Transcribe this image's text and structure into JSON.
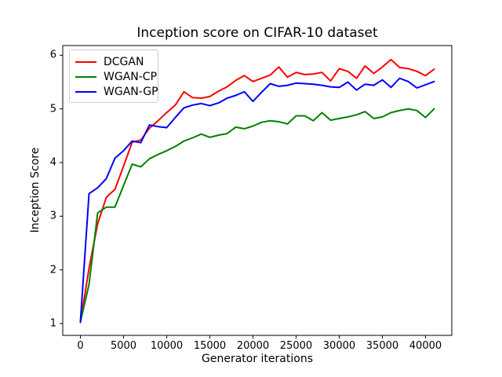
{
  "chart_data": {
    "type": "line",
    "title": "Inception score on CIFAR-10 dataset",
    "xlabel": "Generator iterations",
    "ylabel": "Inception Score",
    "grid": false,
    "legend_position": "upper-left",
    "xlim": [
      -2050,
      43050
    ],
    "ylim": [
      0.78,
      6.18
    ],
    "xticks": {
      "values": [
        0,
        5000,
        10000,
        15000,
        20000,
        25000,
        30000,
        35000,
        40000
      ],
      "labels": [
        "0",
        "5000",
        "10000",
        "15000",
        "20000",
        "25000",
        "30000",
        "35000",
        "40000"
      ]
    },
    "yticks": {
      "values": [
        1,
        2,
        3,
        4,
        5,
        6
      ],
      "labels": [
        "1",
        "2",
        "3",
        "4",
        "5",
        "6"
      ]
    },
    "x": [
      0,
      1000,
      2000,
      3000,
      4000,
      5000,
      6000,
      7000,
      8000,
      9000,
      10000,
      11000,
      12000,
      13000,
      14000,
      15000,
      16000,
      17000,
      18000,
      19000,
      20000,
      21000,
      22000,
      23000,
      24000,
      25000,
      26000,
      27000,
      28000,
      29000,
      30000,
      31000,
      32000,
      33000,
      34000,
      35000,
      36000,
      37000,
      38000,
      39000,
      40000,
      41000
    ],
    "series": [
      {
        "name": "DCGAN",
        "color": "#ff0000",
        "values": [
          1.02,
          2.03,
          2.86,
          3.35,
          3.5,
          3.93,
          4.38,
          4.42,
          4.64,
          4.78,
          4.93,
          5.07,
          5.32,
          5.21,
          5.2,
          5.23,
          5.33,
          5.41,
          5.53,
          5.62,
          5.51,
          5.57,
          5.63,
          5.78,
          5.59,
          5.68,
          5.64,
          5.65,
          5.68,
          5.52,
          5.75,
          5.7,
          5.57,
          5.8,
          5.66,
          5.78,
          5.92,
          5.77,
          5.75,
          5.7,
          5.62,
          5.74
        ]
      },
      {
        "name": "WGAN-CP",
        "color": "#008000",
        "values": [
          1.03,
          1.73,
          3.06,
          3.17,
          3.17,
          3.57,
          3.97,
          3.92,
          4.07,
          4.15,
          4.22,
          4.3,
          4.4,
          4.46,
          4.53,
          4.47,
          4.51,
          4.54,
          4.66,
          4.63,
          4.68,
          4.75,
          4.78,
          4.76,
          4.72,
          4.87,
          4.87,
          4.78,
          4.93,
          4.79,
          4.82,
          4.85,
          4.89,
          4.95,
          4.82,
          4.85,
          4.93,
          4.97,
          5.0,
          4.97,
          4.84,
          5.0
        ]
      },
      {
        "name": "WGAN-GP",
        "color": "#0000ff",
        "values": [
          1.03,
          3.42,
          3.53,
          3.7,
          4.08,
          4.22,
          4.4,
          4.37,
          4.7,
          4.67,
          4.65,
          4.84,
          5.02,
          5.07,
          5.1,
          5.06,
          5.11,
          5.2,
          5.25,
          5.32,
          5.14,
          5.31,
          5.47,
          5.42,
          5.44,
          5.48,
          5.47,
          5.46,
          5.44,
          5.41,
          5.4,
          5.5,
          5.35,
          5.46,
          5.44,
          5.54,
          5.4,
          5.57,
          5.51,
          5.39,
          5.45,
          5.51
        ]
      }
    ]
  }
}
